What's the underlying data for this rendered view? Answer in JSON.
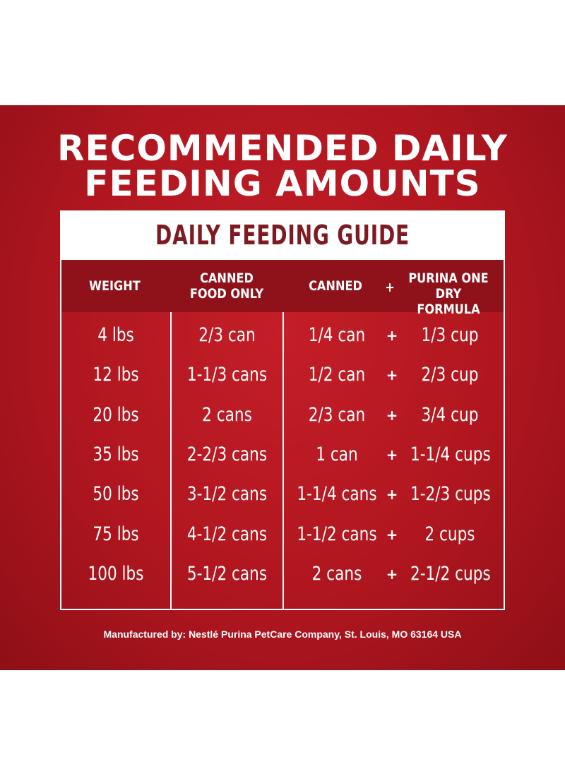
{
  "headline": {
    "line1": "RECOMMENDED DAILY",
    "line2": "FEEDING AMOUNTS"
  },
  "guide_title": "DAILY FEEDING GUIDE",
  "columns": {
    "weight": "WEIGHT",
    "canned_only_1": "CANNED",
    "canned_only_2": "FOOD ONLY",
    "canned": "CANNED",
    "plus": "+",
    "dry_1": "PURINA ONE",
    "dry_2": "DRY FORMULA"
  },
  "rows": [
    {
      "weight": "4 lbs",
      "canned_only": "2/3 can",
      "canned": "1/4 can",
      "plus": "+",
      "dry": "1/3 cup"
    },
    {
      "weight": "12 lbs",
      "canned_only": "1-1/3 cans",
      "canned": "1/2 can",
      "plus": "+",
      "dry": "2/3 cup"
    },
    {
      "weight": "20 lbs",
      "canned_only": "2 cans",
      "canned": "2/3 can",
      "plus": "+",
      "dry": "3/4 cup"
    },
    {
      "weight": "35 lbs",
      "canned_only": "2-2/3 cans",
      "canned": "1 can",
      "plus": "+",
      "dry": "1-1/4 cups"
    },
    {
      "weight": "50 lbs",
      "canned_only": "3-1/2 cans",
      "canned": "1-1/4 cans",
      "plus": "+",
      "dry": "1-2/3 cups"
    },
    {
      "weight": "75 lbs",
      "canned_only": "4-1/2 cans",
      "canned": "1-1/2 cans",
      "plus": "+",
      "dry": "2 cups"
    },
    {
      "weight": "100 lbs",
      "canned_only": "5-1/2 cans",
      "canned": "2 cans",
      "plus": "+",
      "dry": "2-1/2 cups"
    }
  ],
  "footer": "Manufactured by: Nestlé Purina PetCare Company, St. Louis, MO 63164 USA",
  "colors": {
    "background_red": "#b0161f",
    "header_dark_red": "#8f1119",
    "title_maroon": "#7d1a22"
  }
}
